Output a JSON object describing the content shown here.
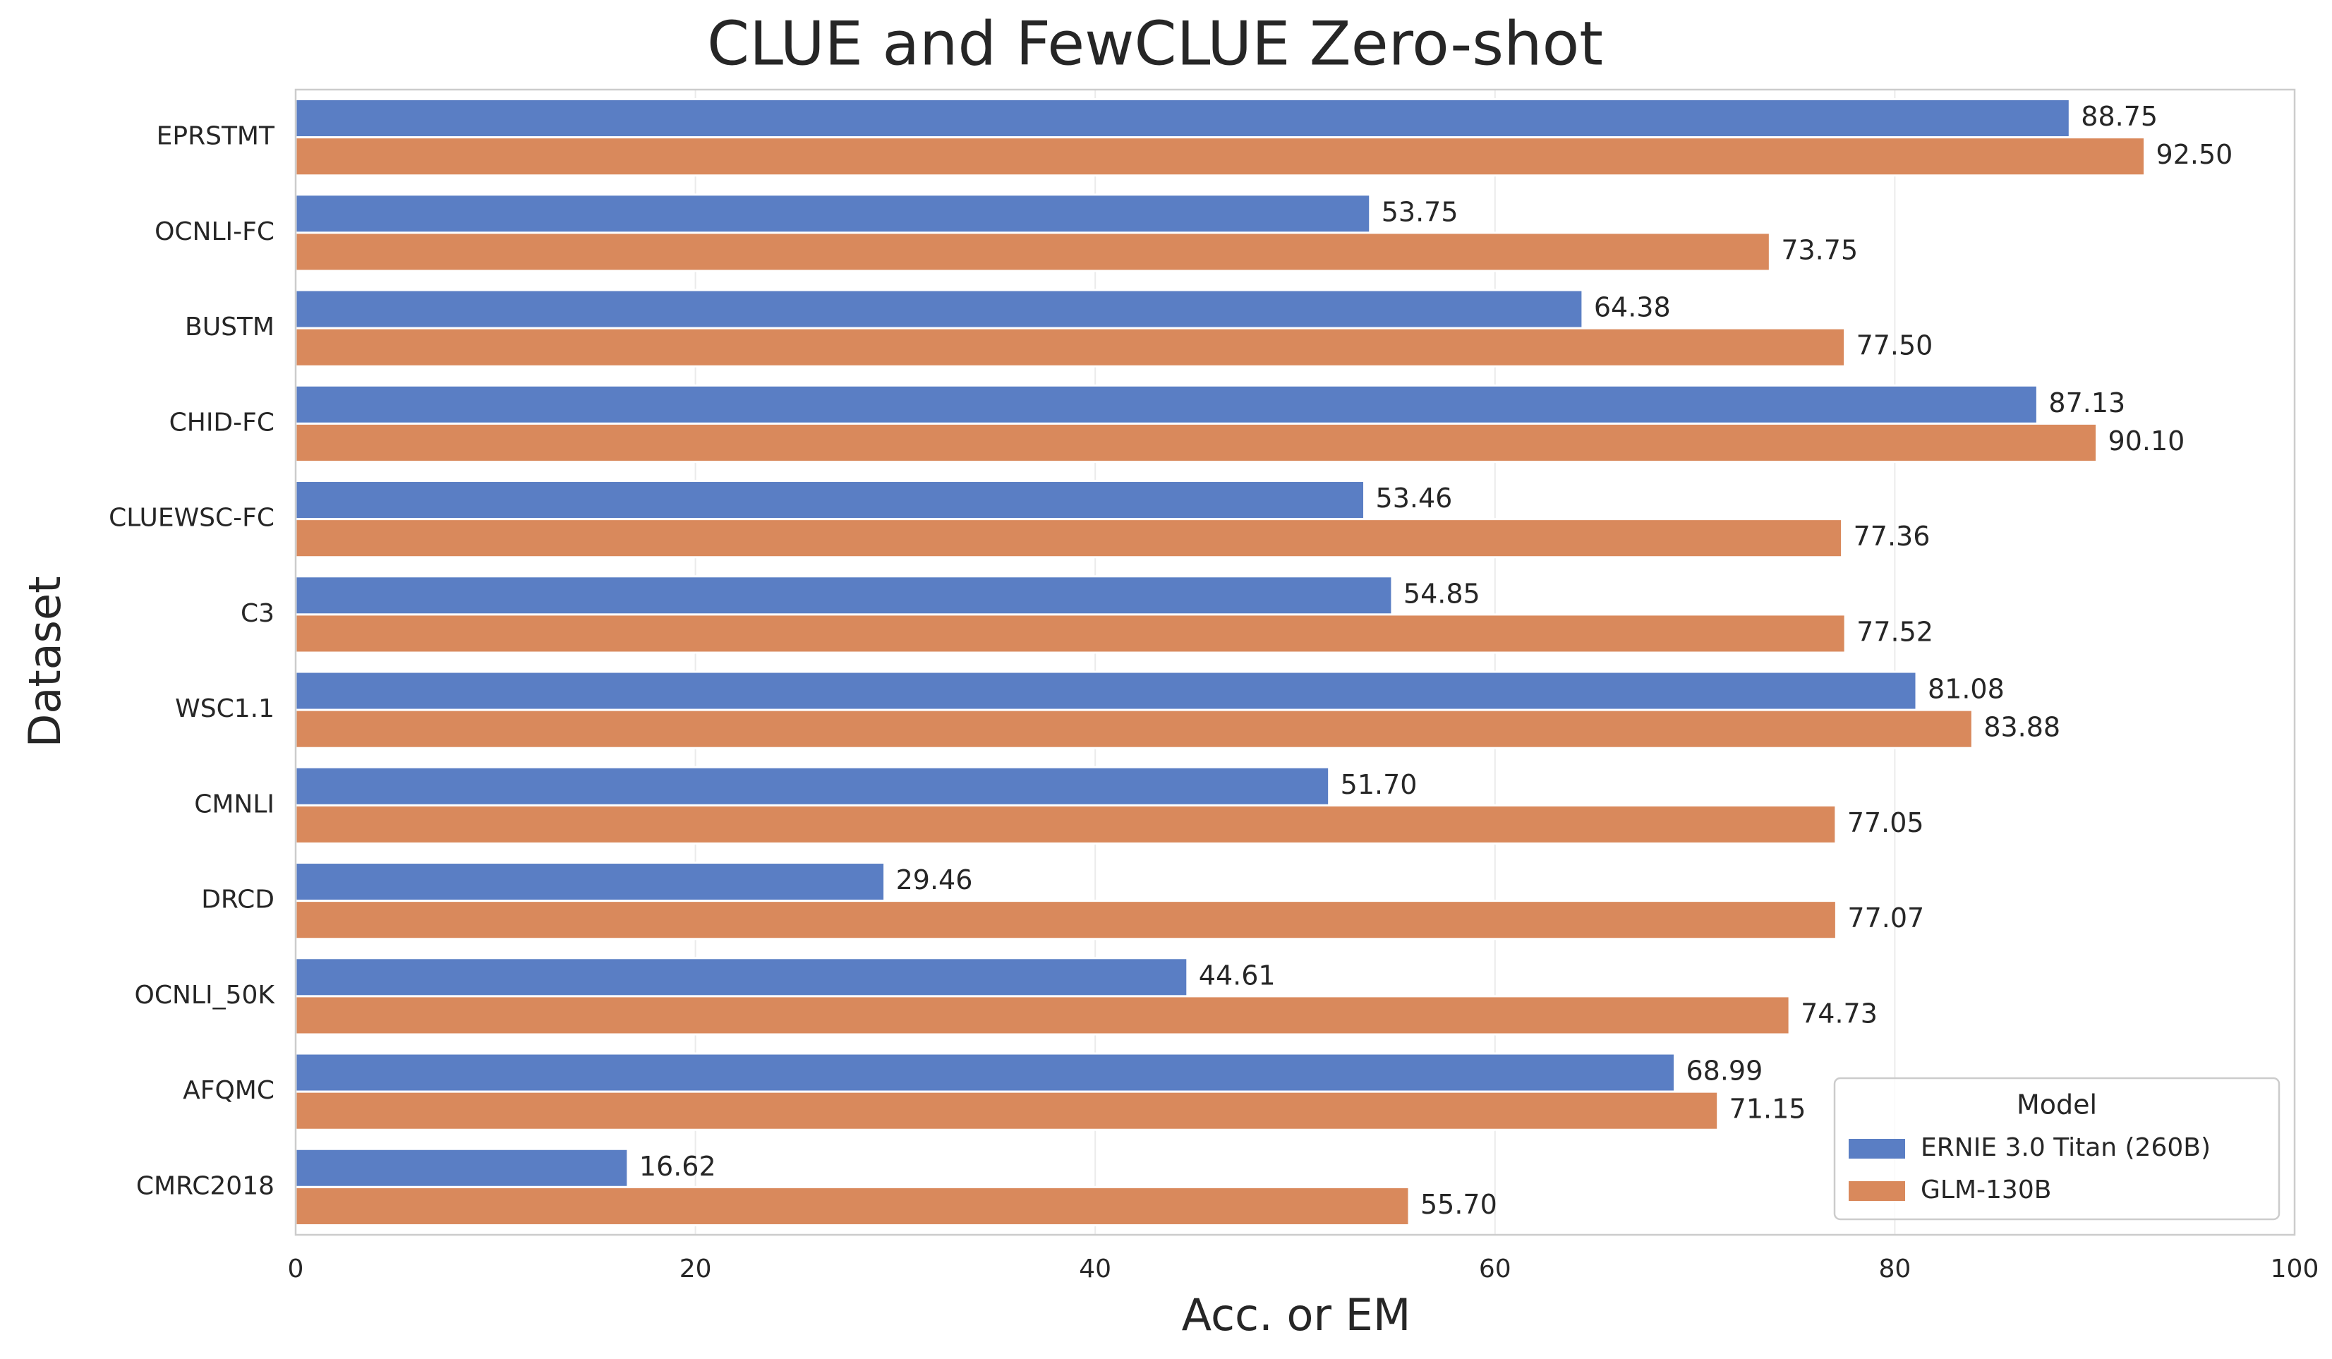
{
  "chart_data": {
    "type": "barh",
    "title": "CLUE and FewCLUE Zero-shot",
    "xlabel": "Acc. or EM",
    "ylabel": "Dataset",
    "categories": [
      "EPRSTMT",
      "OCNLI-FC",
      "BUSTM",
      "CHID-FC",
      "CLUEWSC-FC",
      "C3",
      "WSC1.1",
      "CMNLI",
      "DRCD",
      "OCNLI_50K",
      "AFQMC",
      "CMRC2018"
    ],
    "series": [
      {
        "name": "ERNIE 3.0 Titan (260B)",
        "color": "#5a7ec4",
        "values": [
          88.75,
          53.75,
          64.38,
          87.13,
          53.46,
          54.85,
          81.08,
          51.7,
          29.46,
          44.61,
          68.99,
          16.62
        ],
        "value_labels": [
          "88.75",
          "53.75",
          "64.38",
          "87.13",
          "53.46",
          "54.85",
          "81.08",
          "51.70",
          "29.46",
          "44.61",
          "68.99",
          "16.62"
        ]
      },
      {
        "name": "GLM-130B",
        "color": "#d9895c",
        "values": [
          92.5,
          73.75,
          77.5,
          90.1,
          77.36,
          77.52,
          83.88,
          77.05,
          77.07,
          74.73,
          71.15,
          55.7
        ],
        "value_labels": [
          "92.50",
          "73.75",
          "77.50",
          "90.10",
          "77.36",
          "77.52",
          "83.88",
          "77.05",
          "77.07",
          "74.73",
          "71.15",
          "55.70"
        ]
      }
    ],
    "xlim": [
      0,
      100
    ],
    "xticks": [
      0,
      20,
      40,
      60,
      80,
      100
    ],
    "grid": true,
    "legend": {
      "title": "Model",
      "loc": "lower right"
    }
  }
}
